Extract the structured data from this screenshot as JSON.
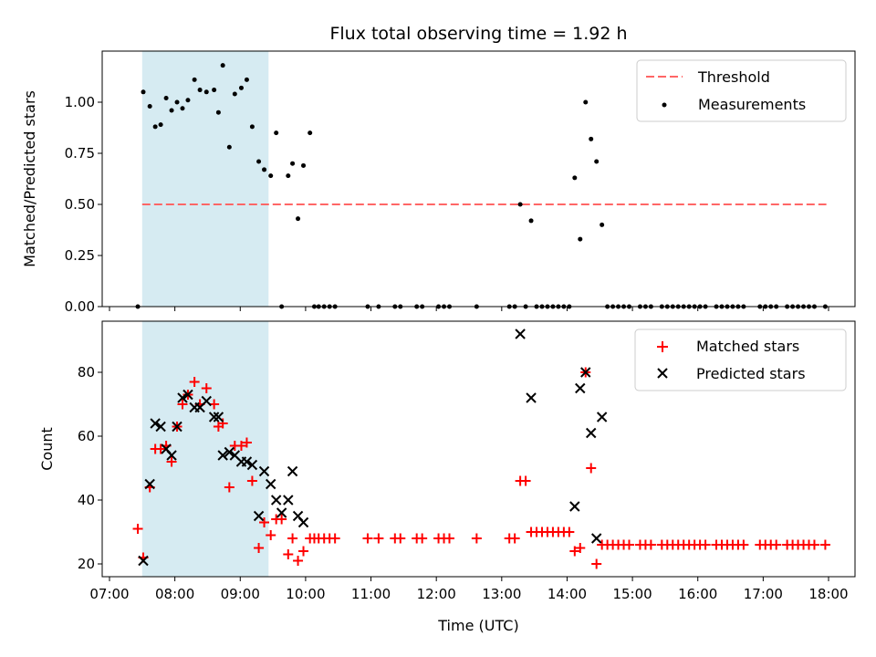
{
  "chart_data": [
    {
      "type": "scatter",
      "title": "Flux total observing time = 1.92 h",
      "ylabel": "Matched/Predicted stars",
      "xlabel": "",
      "xlim": [
        "07:00",
        "18:00"
      ],
      "ylim": [
        0,
        1.25
      ],
      "yticks": [
        "0.00",
        "0.25",
        "0.50",
        "0.75",
        "1.00"
      ],
      "shaded_span": [
        "07:30",
        "09:26"
      ],
      "shaded_color": "#add8e6",
      "legend_position": "top-right",
      "threshold": {
        "name": "Threshold",
        "y": 0.5,
        "x_start": "07:30",
        "x_end": "17:58",
        "color": "#ff6666"
      },
      "series": [
        {
          "name": "Measurements",
          "color": "#000000",
          "points": [
            [
              "07:26",
              0.0
            ],
            [
              "07:31",
              1.05
            ],
            [
              "07:37",
              0.98
            ],
            [
              "07:42",
              0.88
            ],
            [
              "07:47",
              0.89
            ],
            [
              "07:52",
              1.02
            ],
            [
              "07:57",
              0.96
            ],
            [
              "08:02",
              1.0
            ],
            [
              "08:07",
              0.97
            ],
            [
              "08:12",
              1.01
            ],
            [
              "08:18",
              1.11
            ],
            [
              "08:23",
              1.06
            ],
            [
              "08:29",
              1.05
            ],
            [
              "08:36",
              1.06
            ],
            [
              "08:40",
              0.95
            ],
            [
              "08:44",
              1.18
            ],
            [
              "08:50",
              0.78
            ],
            [
              "08:55",
              1.04
            ],
            [
              "09:01",
              1.07
            ],
            [
              "09:06",
              1.11
            ],
            [
              "09:11",
              0.88
            ],
            [
              "09:17",
              0.71
            ],
            [
              "09:22",
              0.67
            ],
            [
              "09:28",
              0.64
            ],
            [
              "09:33",
              0.85
            ],
            [
              "09:38",
              0.0
            ],
            [
              "09:44",
              0.64
            ],
            [
              "09:48",
              0.7
            ],
            [
              "09:53",
              0.43
            ],
            [
              "09:58",
              0.69
            ],
            [
              "10:04",
              0.85
            ],
            [
              "10:08",
              0.0
            ],
            [
              "10:12",
              0.0
            ],
            [
              "10:17",
              0.0
            ],
            [
              "10:22",
              0.0
            ],
            [
              "10:27",
              0.0
            ],
            [
              "10:57",
              0.0
            ],
            [
              "11:07",
              0.0
            ],
            [
              "11:22",
              0.0
            ],
            [
              "11:27",
              0.0
            ],
            [
              "11:42",
              0.0
            ],
            [
              "11:47",
              0.0
            ],
            [
              "12:02",
              0.0
            ],
            [
              "12:07",
              0.0
            ],
            [
              "12:12",
              0.0
            ],
            [
              "12:37",
              0.0
            ],
            [
              "13:07",
              0.0
            ],
            [
              "13:12",
              0.0
            ],
            [
              "13:17",
              0.5
            ],
            [
              "13:22",
              0.0
            ],
            [
              "13:27",
              0.42
            ],
            [
              "13:32",
              0.0
            ],
            [
              "13:37",
              0.0
            ],
            [
              "13:42",
              0.0
            ],
            [
              "13:47",
              0.0
            ],
            [
              "13:52",
              0.0
            ],
            [
              "13:57",
              0.0
            ],
            [
              "14:02",
              0.0
            ],
            [
              "14:07",
              0.63
            ],
            [
              "14:12",
              0.33
            ],
            [
              "14:17",
              1.0
            ],
            [
              "14:22",
              0.82
            ],
            [
              "14:27",
              0.71
            ],
            [
              "14:32",
              0.4
            ],
            [
              "14:37",
              0.0
            ],
            [
              "14:42",
              0.0
            ],
            [
              "14:47",
              0.0
            ],
            [
              "14:52",
              0.0
            ],
            [
              "14:57",
              0.0
            ],
            [
              "15:07",
              0.0
            ],
            [
              "15:12",
              0.0
            ],
            [
              "15:17",
              0.0
            ],
            [
              "15:27",
              0.0
            ],
            [
              "15:32",
              0.0
            ],
            [
              "15:37",
              0.0
            ],
            [
              "15:42",
              0.0
            ],
            [
              "15:47",
              0.0
            ],
            [
              "15:52",
              0.0
            ],
            [
              "15:57",
              0.0
            ],
            [
              "16:02",
              0.0
            ],
            [
              "16:07",
              0.0
            ],
            [
              "16:17",
              0.0
            ],
            [
              "16:22",
              0.0
            ],
            [
              "16:27",
              0.0
            ],
            [
              "16:32",
              0.0
            ],
            [
              "16:37",
              0.0
            ],
            [
              "16:42",
              0.0
            ],
            [
              "16:57",
              0.0
            ],
            [
              "17:02",
              0.0
            ],
            [
              "17:07",
              0.0
            ],
            [
              "17:12",
              0.0
            ],
            [
              "17:22",
              0.0
            ],
            [
              "17:27",
              0.0
            ],
            [
              "17:32",
              0.0
            ],
            [
              "17:37",
              0.0
            ],
            [
              "17:42",
              0.0
            ],
            [
              "17:47",
              0.0
            ],
            [
              "17:57",
              0.0
            ]
          ]
        }
      ]
    },
    {
      "type": "scatter",
      "title": "",
      "ylabel": "Count",
      "xlabel": "Time (UTC)",
      "xlim": [
        "07:00",
        "18:00"
      ],
      "ylim": [
        16,
        96
      ],
      "yticks": [
        "20",
        "40",
        "60",
        "80"
      ],
      "xticks": [
        "07:00",
        "08:00",
        "09:00",
        "10:00",
        "11:00",
        "12:00",
        "13:00",
        "14:00",
        "15:00",
        "16:00",
        "17:00",
        "18:00"
      ],
      "shaded_span": [
        "07:30",
        "09:26"
      ],
      "shaded_color": "#add8e6",
      "legend_position": "top-right",
      "series": [
        {
          "name": "Matched stars",
          "marker": "plus",
          "color": "#ff0000",
          "points": [
            [
              "07:26",
              31
            ],
            [
              "07:31",
              22
            ],
            [
              "07:37",
              44
            ],
            [
              "07:42",
              56
            ],
            [
              "07:47",
              56
            ],
            [
              "07:52",
              57
            ],
            [
              "07:57",
              52
            ],
            [
              "08:02",
              63
            ],
            [
              "08:07",
              70
            ],
            [
              "08:12",
              73
            ],
            [
              "08:18",
              77
            ],
            [
              "08:23",
              70
            ],
            [
              "08:29",
              75
            ],
            [
              "08:36",
              70
            ],
            [
              "08:40",
              63
            ],
            [
              "08:44",
              64
            ],
            [
              "08:50",
              44
            ],
            [
              "08:55",
              57
            ],
            [
              "09:01",
              57
            ],
            [
              "09:06",
              58
            ],
            [
              "09:11",
              46
            ],
            [
              "09:17",
              25
            ],
            [
              "09:22",
              33
            ],
            [
              "09:28",
              29
            ],
            [
              "09:33",
              34
            ],
            [
              "09:38",
              34
            ],
            [
              "09:44",
              23
            ],
            [
              "09:48",
              28
            ],
            [
              "09:53",
              21
            ],
            [
              "09:58",
              24
            ],
            [
              "10:04",
              28
            ],
            [
              "10:08",
              28
            ],
            [
              "10:12",
              28
            ],
            [
              "10:17",
              28
            ],
            [
              "10:22",
              28
            ],
            [
              "10:27",
              28
            ],
            [
              "10:57",
              28
            ],
            [
              "11:07",
              28
            ],
            [
              "11:22",
              28
            ],
            [
              "11:27",
              28
            ],
            [
              "11:42",
              28
            ],
            [
              "11:47",
              28
            ],
            [
              "12:02",
              28
            ],
            [
              "12:07",
              28
            ],
            [
              "12:12",
              28
            ],
            [
              "12:37",
              28
            ],
            [
              "13:07",
              28
            ],
            [
              "13:12",
              28
            ],
            [
              "13:17",
              46
            ],
            [
              "13:22",
              46
            ],
            [
              "13:27",
              30
            ],
            [
              "13:32",
              30
            ],
            [
              "13:37",
              30
            ],
            [
              "13:42",
              30
            ],
            [
              "13:47",
              30
            ],
            [
              "13:52",
              30
            ],
            [
              "13:57",
              30
            ],
            [
              "14:02",
              30
            ],
            [
              "14:07",
              24
            ],
            [
              "14:12",
              25
            ],
            [
              "14:17",
              80
            ],
            [
              "14:22",
              50
            ],
            [
              "14:27",
              20
            ],
            [
              "14:32",
              26
            ],
            [
              "14:37",
              26
            ],
            [
              "14:42",
              26
            ],
            [
              "14:47",
              26
            ],
            [
              "14:52",
              26
            ],
            [
              "14:57",
              26
            ],
            [
              "15:07",
              26
            ],
            [
              "15:12",
              26
            ],
            [
              "15:17",
              26
            ],
            [
              "15:27",
              26
            ],
            [
              "15:32",
              26
            ],
            [
              "15:37",
              26
            ],
            [
              "15:42",
              26
            ],
            [
              "15:47",
              26
            ],
            [
              "15:52",
              26
            ],
            [
              "15:57",
              26
            ],
            [
              "16:02",
              26
            ],
            [
              "16:07",
              26
            ],
            [
              "16:17",
              26
            ],
            [
              "16:22",
              26
            ],
            [
              "16:27",
              26
            ],
            [
              "16:32",
              26
            ],
            [
              "16:37",
              26
            ],
            [
              "16:42",
              26
            ],
            [
              "16:57",
              26
            ],
            [
              "17:02",
              26
            ],
            [
              "17:07",
              26
            ],
            [
              "17:12",
              26
            ],
            [
              "17:22",
              26
            ],
            [
              "17:27",
              26
            ],
            [
              "17:32",
              26
            ],
            [
              "17:37",
              26
            ],
            [
              "17:42",
              26
            ],
            [
              "17:47",
              26
            ],
            [
              "17:57",
              26
            ]
          ]
        },
        {
          "name": "Predicted stars",
          "marker": "x",
          "color": "#000000",
          "points": [
            [
              "07:31",
              21
            ],
            [
              "07:37",
              45
            ],
            [
              "07:42",
              64
            ],
            [
              "07:47",
              63
            ],
            [
              "07:52",
              56
            ],
            [
              "07:57",
              54
            ],
            [
              "08:02",
              63
            ],
            [
              "08:07",
              72
            ],
            [
              "08:12",
              73
            ],
            [
              "08:18",
              69
            ],
            [
              "08:23",
              69
            ],
            [
              "08:29",
              71
            ],
            [
              "08:36",
              66
            ],
            [
              "08:40",
              66
            ],
            [
              "08:44",
              54
            ],
            [
              "08:50",
              55
            ],
            [
              "08:55",
              54
            ],
            [
              "09:01",
              52
            ],
            [
              "09:06",
              52
            ],
            [
              "09:11",
              51
            ],
            [
              "09:17",
              35
            ],
            [
              "09:22",
              49
            ],
            [
              "09:28",
              45
            ],
            [
              "09:33",
              40
            ],
            [
              "09:38",
              36
            ],
            [
              "09:44",
              40
            ],
            [
              "09:48",
              49
            ],
            [
              "09:53",
              35
            ],
            [
              "09:58",
              33
            ],
            [
              "13:17",
              92
            ],
            [
              "13:27",
              72
            ],
            [
              "14:07",
              38
            ],
            [
              "14:12",
              75
            ],
            [
              "14:17",
              80
            ],
            [
              "14:22",
              61
            ],
            [
              "14:27",
              28
            ],
            [
              "14:32",
              66
            ]
          ]
        }
      ]
    }
  ]
}
